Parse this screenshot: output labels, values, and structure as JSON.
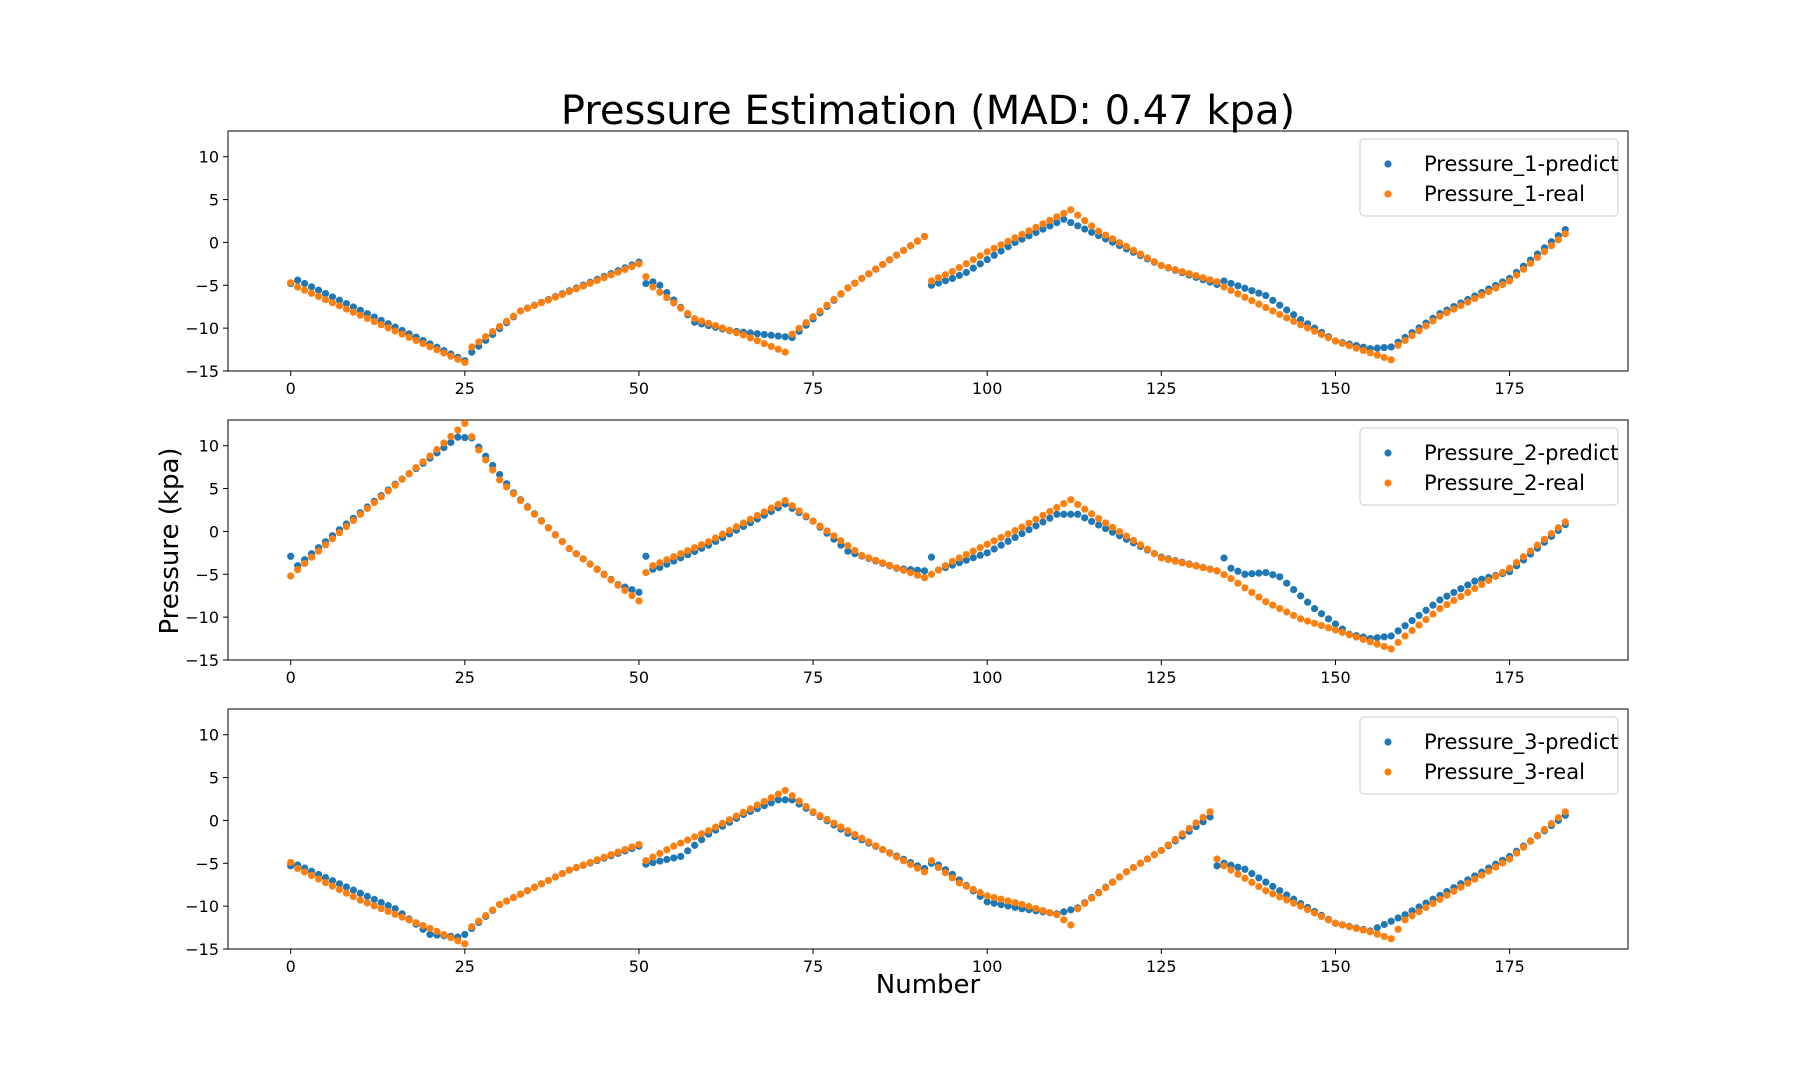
{
  "chart_data": {
    "type": "scatter",
    "title": "Pressure Estimation (MAD: 0.47 kpa)",
    "xlabel": "Number",
    "ylabel": "Pressure (kpa)",
    "xlim": [
      -9,
      192
    ],
    "ylim": [
      -15,
      13
    ],
    "xticks": [
      0,
      25,
      50,
      75,
      100,
      125,
      150,
      175
    ],
    "yticks": [
      10,
      5,
      0,
      -5,
      -10,
      -15
    ],
    "xtick_labels": [
      "0",
      "25",
      "50",
      "75",
      "100",
      "125",
      "150",
      "175"
    ],
    "ytick_labels": [
      "10",
      "5",
      "0",
      "−5",
      "−10",
      "−15"
    ],
    "grid": false,
    "legend_position": "top-right",
    "colors": {
      "predict": "#1f77b4",
      "real": "#ff7f0e"
    },
    "x_range": [
      0,
      183
    ],
    "panels": [
      {
        "legend": [
          "Pressure_1-predict",
          "Pressure_1-real"
        ],
        "predict_anchors": [
          [
            0,
            -4.8
          ],
          [
            1,
            -4.4
          ],
          [
            25,
            -13.8
          ],
          [
            26,
            -12.8
          ],
          [
            33,
            -8.0
          ],
          [
            50,
            -2.3
          ],
          [
            51,
            -4.8
          ],
          [
            52,
            -4.6
          ],
          [
            53,
            -5.0
          ],
          [
            58,
            -9.3
          ],
          [
            63,
            -10.3
          ],
          [
            72,
            -11.1
          ],
          [
            80,
            -5.3
          ],
          [
            91,
            0.7
          ],
          [
            92,
            -5.0
          ],
          [
            95,
            -4.2
          ],
          [
            97,
            -3.5
          ],
          [
            104,
            0.0
          ],
          [
            111,
            2.7
          ],
          [
            116,
            0.8
          ],
          [
            125,
            -2.7
          ],
          [
            133,
            -4.9
          ],
          [
            134,
            -4.5
          ],
          [
            140,
            -6.2
          ],
          [
            145,
            -9.0
          ],
          [
            150,
            -11.5
          ],
          [
            155,
            -12.4
          ],
          [
            158,
            -12.2
          ],
          [
            165,
            -8.3
          ],
          [
            175,
            -4.2
          ],
          [
            183,
            1.5
          ]
        ],
        "real_anchors": [
          [
            0,
            -4.7
          ],
          [
            1,
            -5.2
          ],
          [
            25,
            -14.0
          ],
          [
            26,
            -12.2
          ],
          [
            33,
            -8.0
          ],
          [
            50,
            -2.5
          ],
          [
            51,
            -4.0
          ],
          [
            52,
            -5.2
          ],
          [
            58,
            -8.9
          ],
          [
            65,
            -10.8
          ],
          [
            71,
            -12.8
          ],
          [
            72,
            -10.7
          ],
          [
            80,
            -5.3
          ],
          [
            91,
            0.7
          ],
          [
            92,
            -4.5
          ],
          [
            95,
            -3.4
          ],
          [
            100,
            -1.1
          ],
          [
            112,
            3.8
          ],
          [
            116,
            1.3
          ],
          [
            125,
            -2.7
          ],
          [
            133,
            -4.6
          ],
          [
            134,
            -5.2
          ],
          [
            145,
            -9.6
          ],
          [
            150,
            -11.5
          ],
          [
            158,
            -13.7
          ],
          [
            159,
            -12.0
          ],
          [
            165,
            -8.6
          ],
          [
            175,
            -4.5
          ],
          [
            183,
            1.0
          ]
        ]
      },
      {
        "legend": [
          "Pressure_2-predict",
          "Pressure_2-real"
        ],
        "predict_anchors": [
          [
            0,
            -2.9
          ],
          [
            1,
            -4.0
          ],
          [
            7,
            0.2
          ],
          [
            15,
            5.5
          ],
          [
            24,
            11.0
          ],
          [
            26,
            10.9
          ],
          [
            32,
            4.5
          ],
          [
            40,
            -2.0
          ],
          [
            47,
            -6.2
          ],
          [
            50,
            -7.1
          ],
          [
            51,
            -2.9
          ],
          [
            52,
            -4.4
          ],
          [
            53,
            -4.2
          ],
          [
            60,
            -1.6
          ],
          [
            71,
            3.2
          ],
          [
            75,
            1.2
          ],
          [
            80,
            -2.3
          ],
          [
            87,
            -4.3
          ],
          [
            91,
            -4.6
          ],
          [
            92,
            -3.0
          ],
          [
            93,
            -4.5
          ],
          [
            100,
            -2.5
          ],
          [
            110,
            2.0
          ],
          [
            113,
            2.0
          ],
          [
            125,
            -3.0
          ],
          [
            133,
            -4.6
          ],
          [
            134,
            -3.1
          ],
          [
            135,
            -4.3
          ],
          [
            137,
            -5.0
          ],
          [
            140,
            -4.8
          ],
          [
            142,
            -5.3
          ],
          [
            147,
            -9.0
          ],
          [
            152,
            -12.0
          ],
          [
            155,
            -12.5
          ],
          [
            158,
            -12.2
          ],
          [
            165,
            -8.0
          ],
          [
            170,
            -5.8
          ],
          [
            175,
            -4.7
          ],
          [
            183,
            0.8
          ]
        ],
        "real_anchors": [
          [
            0,
            -5.2
          ],
          [
            3,
            -3.0
          ],
          [
            10,
            2.0
          ],
          [
            20,
            8.8
          ],
          [
            25,
            12.6
          ],
          [
            27,
            9.5
          ],
          [
            30,
            6.0
          ],
          [
            40,
            -2.0
          ],
          [
            50,
            -8.1
          ],
          [
            51,
            -4.8
          ],
          [
            52,
            -4.0
          ],
          [
            60,
            -1.2
          ],
          [
            71,
            3.6
          ],
          [
            75,
            1.2
          ],
          [
            82,
            -2.8
          ],
          [
            91,
            -5.4
          ],
          [
            92,
            -5.0
          ],
          [
            95,
            -3.5
          ],
          [
            105,
            0.5
          ],
          [
            112,
            3.7
          ],
          [
            116,
            1.5
          ],
          [
            125,
            -3.1
          ],
          [
            133,
            -4.6
          ],
          [
            135,
            -5.5
          ],
          [
            140,
            -8.2
          ],
          [
            145,
            -10.2
          ],
          [
            150,
            -11.5
          ],
          [
            158,
            -13.7
          ],
          [
            160,
            -12.2
          ],
          [
            165,
            -9.0
          ],
          [
            175,
            -4.3
          ],
          [
            183,
            1.1
          ]
        ]
      },
      {
        "legend": [
          "Pressure_3-predict",
          "Pressure_3-real"
        ],
        "predict_anchors": [
          [
            0,
            -5.3
          ],
          [
            1,
            -5.2
          ],
          [
            10,
            -8.5
          ],
          [
            15,
            -10.3
          ],
          [
            20,
            -13.3
          ],
          [
            24,
            -13.6
          ],
          [
            25,
            -13.3
          ],
          [
            30,
            -9.8
          ],
          [
            40,
            -5.8
          ],
          [
            50,
            -3.0
          ],
          [
            51,
            -5.1
          ],
          [
            56,
            -4.2
          ],
          [
            60,
            -1.6
          ],
          [
            65,
            0.7
          ],
          [
            70,
            2.4
          ],
          [
            72,
            2.4
          ],
          [
            80,
            -1.5
          ],
          [
            90,
            -5.3
          ],
          [
            91,
            -5.6
          ],
          [
            92,
            -5.0
          ],
          [
            93,
            -5.2
          ],
          [
            95,
            -6.3
          ],
          [
            100,
            -9.5
          ],
          [
            105,
            -10.3
          ],
          [
            110,
            -10.9
          ],
          [
            113,
            -10.2
          ],
          [
            120,
            -6.0
          ],
          [
            125,
            -3.5
          ],
          [
            132,
            0.4
          ],
          [
            133,
            -5.3
          ],
          [
            134,
            -5.0
          ],
          [
            137,
            -5.7
          ],
          [
            145,
            -9.7
          ],
          [
            150,
            -12.0
          ],
          [
            155,
            -12.9
          ],
          [
            160,
            -11.0
          ],
          [
            166,
            -8.3
          ],
          [
            175,
            -4.2
          ],
          [
            183,
            0.6
          ]
        ],
        "real_anchors": [
          [
            0,
            -4.9
          ],
          [
            1,
            -5.6
          ],
          [
            10,
            -9.3
          ],
          [
            20,
            -12.6
          ],
          [
            25,
            -14.4
          ],
          [
            26,
            -12.4
          ],
          [
            30,
            -9.8
          ],
          [
            40,
            -5.8
          ],
          [
            50,
            -2.8
          ],
          [
            51,
            -4.7
          ],
          [
            55,
            -3.0
          ],
          [
            60,
            -1.2
          ],
          [
            71,
            3.5
          ],
          [
            75,
            1.0
          ],
          [
            85,
            -3.4
          ],
          [
            91,
            -6.0
          ],
          [
            92,
            -4.7
          ],
          [
            93,
            -5.5
          ],
          [
            96,
            -7.3
          ],
          [
            100,
            -8.8
          ],
          [
            105,
            -9.8
          ],
          [
            110,
            -11.0
          ],
          [
            112,
            -12.2
          ],
          [
            113,
            -10.3
          ],
          [
            120,
            -6.0
          ],
          [
            125,
            -3.5
          ],
          [
            132,
            1.0
          ],
          [
            133,
            -4.5
          ],
          [
            134,
            -5.3
          ],
          [
            140,
            -8.2
          ],
          [
            145,
            -10.0
          ],
          [
            150,
            -12.0
          ],
          [
            155,
            -13.0
          ],
          [
            158,
            -13.8
          ],
          [
            160,
            -11.6
          ],
          [
            165,
            -9.2
          ],
          [
            175,
            -4.5
          ],
          [
            183,
            1.0
          ]
        ]
      }
    ]
  }
}
